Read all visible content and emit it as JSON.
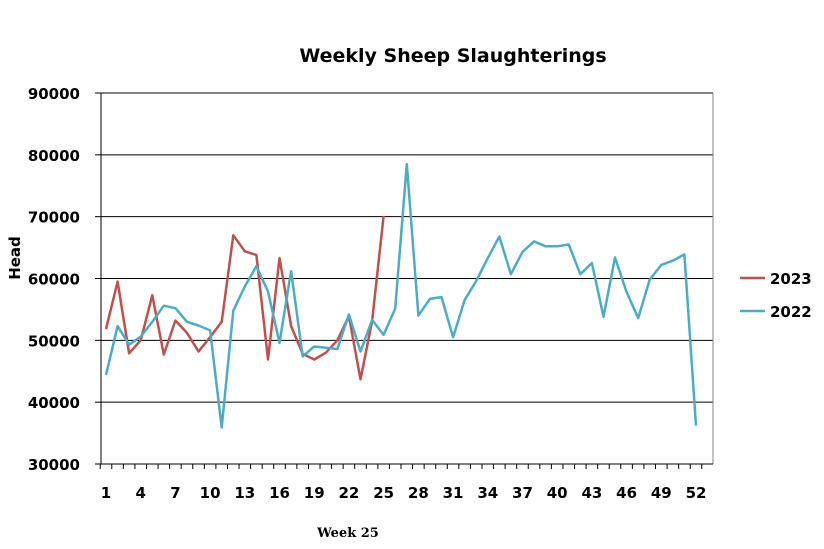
{
  "chart_data": {
    "type": "line",
    "title": "Weekly Sheep Slaughterings",
    "ylabel": "Head",
    "xlabel": "",
    "ylim": [
      30000,
      90000
    ],
    "yticks": [
      "30000",
      "40000",
      "50000",
      "60000",
      "70000",
      "80000",
      "90000"
    ],
    "xlim": [
      1,
      52
    ],
    "xticks": [
      "1",
      "4",
      "7",
      "10",
      "13",
      "16",
      "19",
      "22",
      "25",
      "28",
      "31",
      "34",
      "37",
      "40",
      "43",
      "46",
      "49",
      "52"
    ],
    "grid": "horizontal",
    "legend_position": "right",
    "series": [
      {
        "name": "2023",
        "color": "#c0504d",
        "x": [
          1,
          2,
          3,
          4,
          5,
          6,
          7,
          8,
          9,
          10,
          11,
          12,
          13,
          14,
          15,
          16,
          17,
          18,
          19,
          20,
          21,
          22,
          23,
          24,
          25
        ],
        "values": [
          51800,
          59500,
          47900,
          50000,
          57300,
          47700,
          53200,
          51200,
          48200,
          50500,
          53000,
          67000,
          64400,
          63800,
          46900,
          63300,
          52300,
          47800,
          46900,
          48000,
          50000,
          53900,
          43700,
          53100,
          70100
        ]
      },
      {
        "name": "2022",
        "color": "#4bacc6",
        "x": [
          1,
          2,
          3,
          4,
          5,
          6,
          7,
          8,
          9,
          10,
          11,
          12,
          13,
          14,
          15,
          16,
          17,
          18,
          19,
          20,
          21,
          22,
          23,
          24,
          25,
          26,
          27,
          28,
          29,
          30,
          31,
          32,
          33,
          34,
          35,
          36,
          37,
          38,
          39,
          40,
          41,
          42,
          43,
          44,
          45,
          46,
          47,
          48,
          49,
          50,
          51,
          52
        ],
        "values": [
          44400,
          52300,
          49300,
          50600,
          53000,
          55600,
          55200,
          53000,
          52400,
          51600,
          35900,
          54800,
          58700,
          62000,
          57900,
          49600,
          61200,
          47400,
          49000,
          48800,
          48600,
          54200,
          48200,
          53300,
          50900,
          55100,
          78500,
          54000,
          56700,
          57000,
          50500,
          56500,
          59600,
          63300,
          66800,
          60700,
          64300,
          66000,
          65200,
          65200,
          65500,
          60700,
          62500,
          53800,
          63400,
          57800,
          53600,
          59800,
          62200,
          62900,
          63900,
          36200
        ]
      }
    ],
    "annotation": "Week 25"
  }
}
